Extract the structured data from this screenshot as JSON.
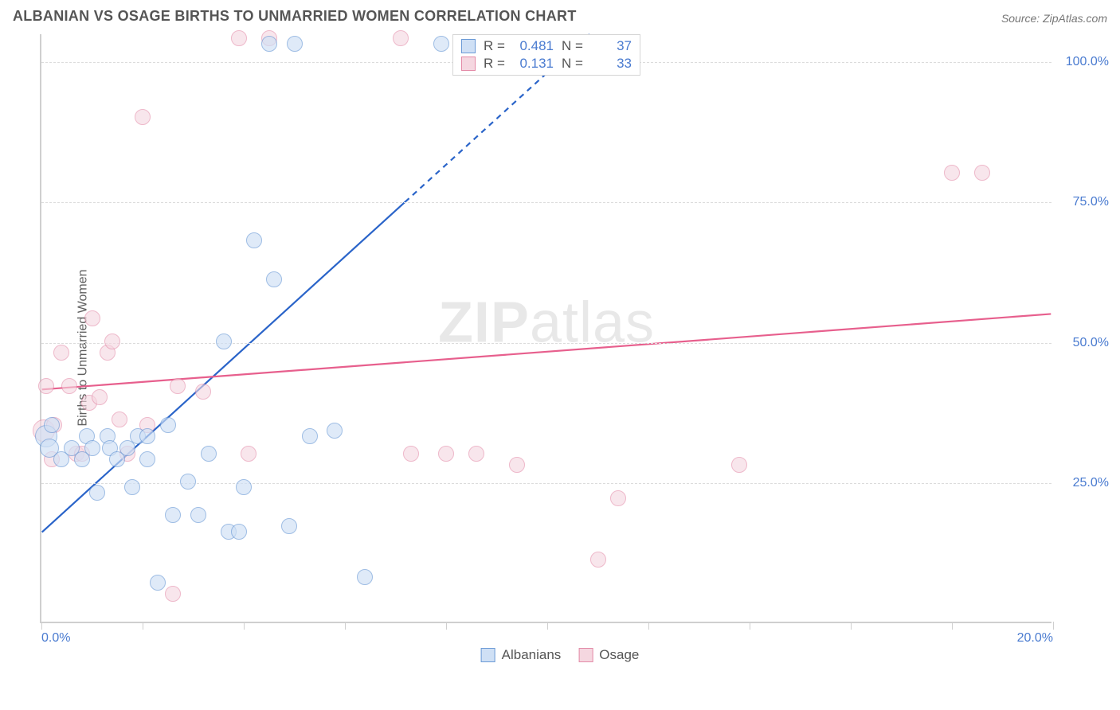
{
  "title": "ALBANIAN VS OSAGE BIRTHS TO UNMARRIED WOMEN CORRELATION CHART",
  "source_label": "Source: ZipAtlas.com",
  "y_axis_label": "Births to Unmarried Women",
  "watermark": {
    "part1": "ZIP",
    "part2": "atlas"
  },
  "chart": {
    "type": "scatter",
    "xlim": [
      0,
      20
    ],
    "ylim": [
      0,
      105
    ],
    "x_tick_step": 2,
    "x_tick_labels": {
      "0": "0.0%",
      "20": "20.0%"
    },
    "y_gridlines": [
      25,
      50,
      75,
      100
    ],
    "y_tick_labels": {
      "25": "25.0%",
      "50": "50.0%",
      "75": "75.0%",
      "100": "100.0%"
    },
    "background_color": "#ffffff",
    "grid_color": "#dcdcdc",
    "axis_color": "#cfcfcf",
    "tick_label_color": "#4a7bd0",
    "marker_radius": 10,
    "marker_border_width": 1.4,
    "series": {
      "albanians": {
        "label": "Albanians",
        "fill": "#cfe0f5",
        "stroke": "#6b9ad6",
        "fill_opacity": 0.65,
        "R": "0.481",
        "N": "37",
        "trend": {
          "color": "#2a64c9",
          "width": 2.2,
          "y_at_x0": 16,
          "y_at_x20": 180,
          "dash_above_y": 75
        },
        "points": [
          {
            "x": 0.1,
            "y": 33,
            "r": 14
          },
          {
            "x": 0.15,
            "y": 31,
            "r": 12
          },
          {
            "x": 0.2,
            "y": 35
          },
          {
            "x": 0.4,
            "y": 29
          },
          {
            "x": 0.6,
            "y": 31
          },
          {
            "x": 0.8,
            "y": 29
          },
          {
            "x": 0.9,
            "y": 33
          },
          {
            "x": 1.0,
            "y": 31
          },
          {
            "x": 1.1,
            "y": 23
          },
          {
            "x": 1.3,
            "y": 33
          },
          {
            "x": 1.35,
            "y": 31
          },
          {
            "x": 1.5,
            "y": 29
          },
          {
            "x": 1.7,
            "y": 31
          },
          {
            "x": 1.8,
            "y": 24
          },
          {
            "x": 1.9,
            "y": 33
          },
          {
            "x": 2.1,
            "y": 29
          },
          {
            "x": 2.1,
            "y": 33
          },
          {
            "x": 2.3,
            "y": 7
          },
          {
            "x": 2.5,
            "y": 35
          },
          {
            "x": 2.6,
            "y": 19
          },
          {
            "x": 2.9,
            "y": 25
          },
          {
            "x": 3.1,
            "y": 19
          },
          {
            "x": 3.3,
            "y": 30
          },
          {
            "x": 3.6,
            "y": 50
          },
          {
            "x": 3.7,
            "y": 16
          },
          {
            "x": 3.9,
            "y": 16
          },
          {
            "x": 4.0,
            "y": 24
          },
          {
            "x": 4.2,
            "y": 68
          },
          {
            "x": 4.5,
            "y": 103
          },
          {
            "x": 4.6,
            "y": 61
          },
          {
            "x": 4.9,
            "y": 17
          },
          {
            "x": 5.0,
            "y": 103
          },
          {
            "x": 5.3,
            "y": 33
          },
          {
            "x": 5.8,
            "y": 34
          },
          {
            "x": 6.4,
            "y": 8
          },
          {
            "x": 7.9,
            "y": 103
          },
          {
            "x": 8.3,
            "y": 103
          }
        ]
      },
      "osage": {
        "label": "Osage",
        "fill": "#f5d7e0",
        "stroke": "#e38aa7",
        "fill_opacity": 0.6,
        "R": "0.131",
        "N": "33",
        "trend": {
          "color": "#e75f8d",
          "width": 2.2,
          "y_at_x0": 41.5,
          "y_at_x20": 55,
          "dash_above_y": 200
        },
        "points": [
          {
            "x": 0.05,
            "y": 34,
            "r": 14
          },
          {
            "x": 0.1,
            "y": 42
          },
          {
            "x": 0.2,
            "y": 29
          },
          {
            "x": 0.25,
            "y": 35
          },
          {
            "x": 0.4,
            "y": 48
          },
          {
            "x": 0.55,
            "y": 42
          },
          {
            "x": 0.7,
            "y": 30
          },
          {
            "x": 0.8,
            "y": 30
          },
          {
            "x": 0.95,
            "y": 39
          },
          {
            "x": 1.0,
            "y": 54
          },
          {
            "x": 1.15,
            "y": 40
          },
          {
            "x": 1.3,
            "y": 48
          },
          {
            "x": 1.4,
            "y": 50
          },
          {
            "x": 1.55,
            "y": 36
          },
          {
            "x": 1.7,
            "y": 30
          },
          {
            "x": 2.0,
            "y": 90
          },
          {
            "x": 2.1,
            "y": 35
          },
          {
            "x": 2.6,
            "y": 5
          },
          {
            "x": 2.7,
            "y": 42
          },
          {
            "x": 3.2,
            "y": 41
          },
          {
            "x": 3.9,
            "y": 104
          },
          {
            "x": 4.1,
            "y": 30
          },
          {
            "x": 4.5,
            "y": 104
          },
          {
            "x": 7.1,
            "y": 104
          },
          {
            "x": 7.3,
            "y": 30
          },
          {
            "x": 8.0,
            "y": 30
          },
          {
            "x": 8.6,
            "y": 30
          },
          {
            "x": 9.4,
            "y": 28
          },
          {
            "x": 11.0,
            "y": 11
          },
          {
            "x": 11.4,
            "y": 22
          },
          {
            "x": 13.8,
            "y": 28
          },
          {
            "x": 18.0,
            "y": 80
          },
          {
            "x": 18.6,
            "y": 80
          }
        ]
      }
    }
  },
  "legend_top": {
    "R_label": "R =",
    "N_label": "N ="
  }
}
